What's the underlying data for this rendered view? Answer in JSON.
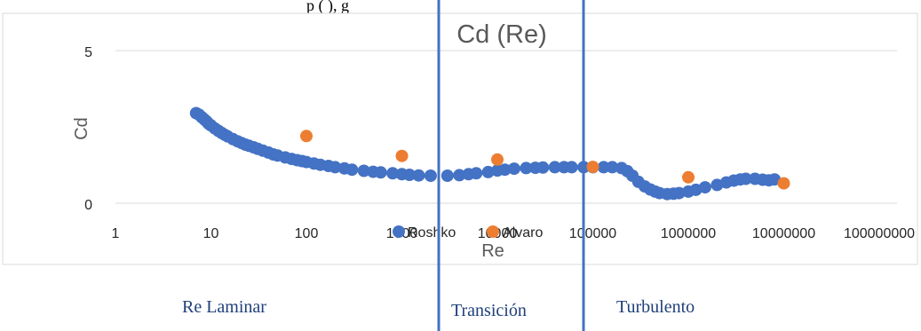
{
  "chart_data": {
    "type": "scatter",
    "title": "Cd (Re)",
    "xlabel": "Re",
    "ylabel": "Cd",
    "x_scale": "log",
    "xlim": [
      1,
      100000000
    ],
    "ylim": [
      0,
      5
    ],
    "x_tick_labels": [
      "1",
      "10",
      "100",
      "1000",
      "10000",
      "100000",
      "1000000",
      "10000000",
      "100000000"
    ],
    "y_tick_labels": [
      "0",
      "5"
    ],
    "grid": "horizontal",
    "legend_position": "bottom-center",
    "series": [
      {
        "name": "Roshko",
        "color": "#4472c4",
        "x": [
          7,
          7.5,
          8,
          8.5,
          9,
          9.5,
          10,
          11,
          12,
          13,
          14,
          15,
          17,
          19,
          21,
          23,
          25,
          28,
          31,
          35,
          40,
          45,
          50,
          60,
          70,
          80,
          90,
          100,
          120,
          140,
          170,
          200,
          250,
          300,
          400,
          500,
          600,
          800,
          1000,
          1200,
          1500,
          2000,
          3000,
          4000,
          5000,
          6000,
          8000,
          10000,
          12000,
          15000,
          20000,
          25000,
          30000,
          40000,
          50000,
          60000,
          80000,
          100000,
          130000,
          160000,
          200000,
          230000,
          260000,
          300000,
          350000,
          400000,
          450000,
          500000,
          600000,
          700000,
          800000,
          1000000,
          1200000,
          1500000,
          2000000,
          2500000,
          3000000,
          3500000,
          4000000,
          5000000,
          6000000,
          7000000,
          8000000
        ],
        "y": [
          2.95,
          2.9,
          2.82,
          2.75,
          2.68,
          2.6,
          2.55,
          2.45,
          2.37,
          2.3,
          2.24,
          2.19,
          2.1,
          2.03,
          1.97,
          1.92,
          1.88,
          1.83,
          1.78,
          1.72,
          1.66,
          1.6,
          1.56,
          1.5,
          1.45,
          1.41,
          1.38,
          1.35,
          1.3,
          1.26,
          1.22,
          1.18,
          1.14,
          1.1,
          1.06,
          1.03,
          1.01,
          0.98,
          0.95,
          0.93,
          0.91,
          0.9,
          0.9,
          0.92,
          0.95,
          0.98,
          1.02,
          1.07,
          1.1,
          1.13,
          1.15,
          1.16,
          1.17,
          1.18,
          1.18,
          1.18,
          1.18,
          1.18,
          1.18,
          1.18,
          1.15,
          1.05,
          0.9,
          0.7,
          0.55,
          0.45,
          0.38,
          0.33,
          0.3,
          0.31,
          0.33,
          0.38,
          0.44,
          0.52,
          0.6,
          0.68,
          0.74,
          0.78,
          0.8,
          0.8,
          0.77,
          0.75,
          0.78
        ]
      },
      {
        "name": "Alvaro",
        "color": "#ed7d31",
        "x": [
          100,
          1000,
          10000,
          100000,
          1000000,
          10000000
        ],
        "y": [
          2.2,
          1.55,
          1.43,
          1.19,
          0.85,
          0.65
        ]
      }
    ]
  },
  "annotations": {
    "regions": [
      {
        "label": "Re Laminar"
      },
      {
        "label": "Transición"
      },
      {
        "label": "Turbulento"
      }
    ],
    "boundary_color": "#4472c4"
  },
  "header_fragment": "p                                (    ),       g"
}
